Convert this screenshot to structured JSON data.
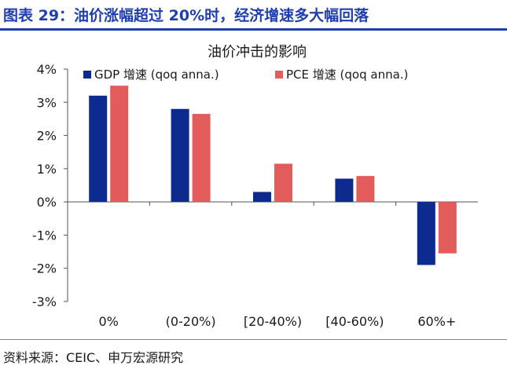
{
  "header": {
    "title": "图表 29：油价涨幅超过 20%时，经济增速多大幅回落"
  },
  "footer": {
    "source": "资料来源：CEIC、申万宏源研究"
  },
  "colors": {
    "accent": "#1f3fb0"
  },
  "chart_data": {
    "type": "bar",
    "title": "油价冲击的影响",
    "xlabel": "",
    "ylabel": "",
    "categories": [
      "0%",
      "(0-20%)",
      "[20-40%)",
      "[40-60%)",
      "60%+"
    ],
    "series": [
      {
        "name": "GDP 增速 (qoq anna.)",
        "color": "#0d2a8f",
        "values": [
          3.2,
          2.8,
          0.3,
          0.7,
          -1.9
        ]
      },
      {
        "name": "PCE 增速 (qoq anna.)",
        "color": "#e25c5c",
        "values": [
          3.5,
          2.65,
          1.15,
          0.78,
          -1.55
        ]
      }
    ],
    "ylim": [
      -3,
      4
    ],
    "yticks": [
      -3,
      -2,
      -1,
      0,
      1,
      2,
      3,
      4
    ],
    "ytick_labels": [
      "-3%",
      "-2%",
      "-1%",
      "0%",
      "1%",
      "2%",
      "3%",
      "4%"
    ],
    "grid": false,
    "legend_position": "top"
  }
}
